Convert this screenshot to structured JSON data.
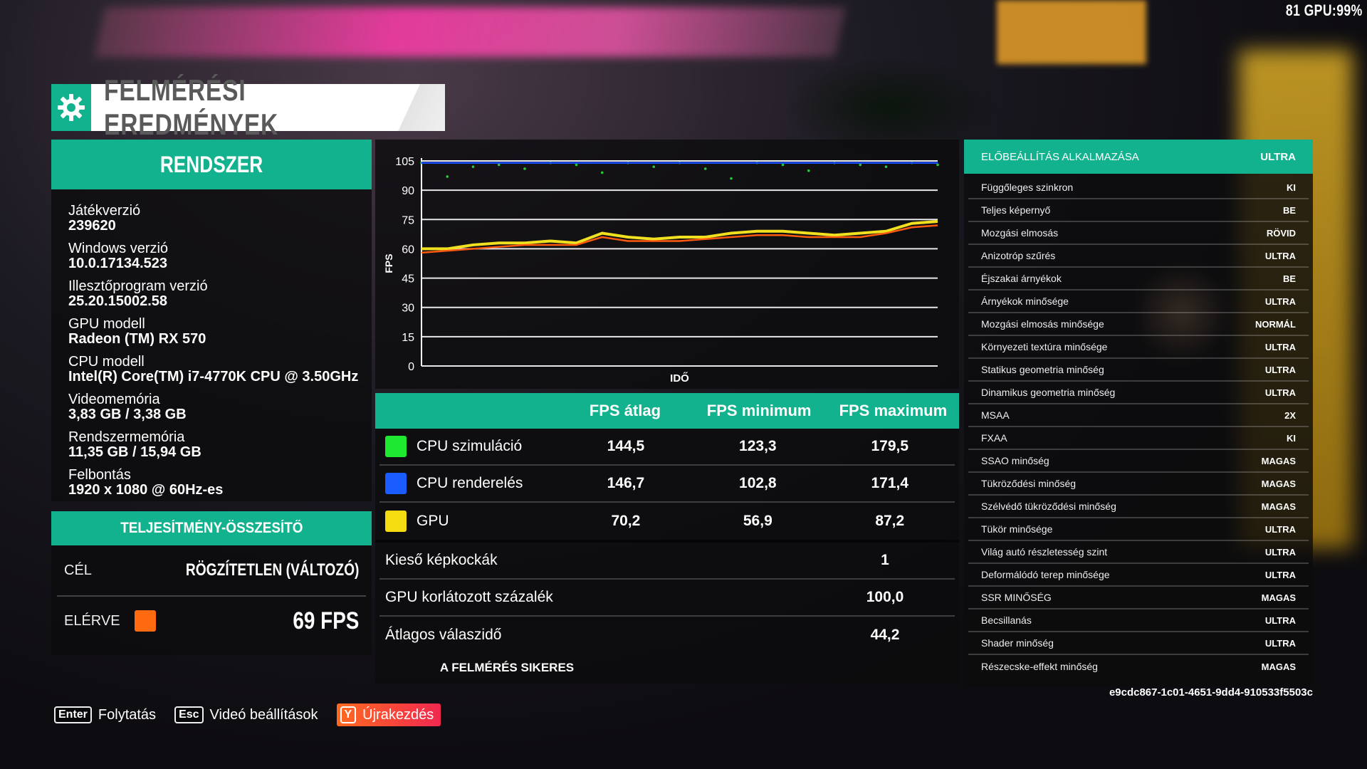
{
  "hud": {
    "top_right": "81 GPU:99%"
  },
  "header": {
    "title": "FELMÉRÉSI EREDMÉNYEK",
    "icon": "gear-icon"
  },
  "system": {
    "title": "RENDSZER",
    "items": [
      {
        "label": "Játékverzió",
        "value": "239620"
      },
      {
        "label": "Windows verzió",
        "value": "10.0.17134.523"
      },
      {
        "label": "Illesztőprogram verzió",
        "value": "25.20.15002.58"
      },
      {
        "label": "GPU modell",
        "value": "Radeon (TM) RX 570"
      },
      {
        "label": "CPU modell",
        "value": "Intel(R) Core(TM) i7-4770K CPU @ 3.50GHz"
      },
      {
        "label": "Videomemória",
        "value": "3,83 GB / 3,38 GB"
      },
      {
        "label": "Rendszermemória",
        "value": "11,35 GB / 15,94 GB"
      },
      {
        "label": "Felbontás",
        "value": "1920 x 1080 @ 60Hz-es"
      }
    ]
  },
  "performance": {
    "title": "TELJESÍTMÉNY-ÖSSZESÍTŐ",
    "target_label": "CÉL",
    "target_value": "RÖGZÍTETLEN (VÁLTOZÓ)",
    "achieved_label": "ELÉRVE",
    "achieved_value": "69 FPS",
    "achieved_color": "#ff6a10"
  },
  "chart_data": {
    "type": "line",
    "xlabel": "IDŐ",
    "ylabel": "FPS",
    "ylim": [
      0,
      105
    ],
    "yticks": [
      "0",
      "15",
      "30",
      "45",
      "60",
      "75",
      "90",
      "105"
    ],
    "x": [
      0,
      5,
      10,
      15,
      20,
      25,
      30,
      35,
      40,
      45,
      50,
      55,
      60,
      65,
      70,
      75,
      80,
      85,
      90,
      95,
      100
    ],
    "series": [
      {
        "name": "CPU szimuláció",
        "color": "#22cc33",
        "style": "scatter-high",
        "values": [
          104,
          97,
          102,
          103,
          101,
          104,
          103,
          99,
          104,
          102,
          104,
          101,
          96,
          104,
          103,
          100,
          104,
          103,
          102,
          104,
          103
        ]
      },
      {
        "name": "CPU renderelés",
        "color": "#1a4dff",
        "style": "line",
        "values": [
          104,
          104,
          104,
          104,
          104,
          104,
          104,
          104,
          104,
          104,
          104,
          104,
          104,
          104,
          104,
          104,
          104,
          104,
          104,
          104,
          104
        ]
      },
      {
        "name": "GPU",
        "color": "#f0e020",
        "style": "line",
        "values": [
          60,
          60,
          62,
          63,
          63,
          64,
          63,
          68,
          66,
          65,
          66,
          66,
          68,
          69,
          69,
          68,
          67,
          68,
          69,
          73,
          74
        ]
      },
      {
        "name": "",
        "color": "#ff5a10",
        "style": "line",
        "values": [
          58,
          59,
          60,
          61,
          62,
          62,
          62,
          66,
          64,
          64,
          64,
          65,
          66,
          67,
          67,
          66,
          66,
          66,
          68,
          71,
          72
        ]
      }
    ]
  },
  "table": {
    "headers": [
      "",
      "FPS átlag",
      "FPS minimum",
      "FPS maximum"
    ],
    "rows": [
      {
        "label": "CPU szimuláció",
        "color": "#1ee830",
        "avg": "144,5",
        "min": "123,3",
        "max": "179,5"
      },
      {
        "label": "CPU renderelés",
        "color": "#1a5cff",
        "avg": "146,7",
        "min": "102,8",
        "max": "171,4"
      },
      {
        "label": "GPU",
        "color": "#f5dc10",
        "avg": "70,2",
        "min": "56,9",
        "max": "87,2"
      }
    ],
    "stats": [
      {
        "label": "Kieső képkockák",
        "value": "1"
      },
      {
        "label": "GPU korlátozott százalék",
        "value": "100,0"
      },
      {
        "label": "Átlagos válaszidő",
        "value": "44,2"
      }
    ],
    "status": "A FELMÉRÉS SIKERES"
  },
  "settings": {
    "head_label": "ELŐBEÁLLÍTÁS ALKALMAZÁSA",
    "head_value": "ULTRA",
    "rows": [
      {
        "label": "Függőleges szinkron",
        "value": "KI"
      },
      {
        "label": "Teljes képernyő",
        "value": "BE"
      },
      {
        "label": "Mozgási elmosás",
        "value": "RÖVID"
      },
      {
        "label": "Anizotróp szűrés",
        "value": "ULTRA"
      },
      {
        "label": "Éjszakai árnyékok",
        "value": "BE"
      },
      {
        "label": "Árnyékok minősége",
        "value": "ULTRA"
      },
      {
        "label": "Mozgási elmosás minősége",
        "value": "NORMÁL"
      },
      {
        "label": "Környezeti textúra minősége",
        "value": "ULTRA"
      },
      {
        "label": "Statikus geometria minőség",
        "value": "ULTRA"
      },
      {
        "label": "Dinamikus geometria minőség",
        "value": "ULTRA"
      },
      {
        "label": "MSAA",
        "value": "2X"
      },
      {
        "label": "FXAA",
        "value": "KI"
      },
      {
        "label": "SSAO minőség",
        "value": "MAGAS"
      },
      {
        "label": "Tükröződési minőség",
        "value": "MAGAS"
      },
      {
        "label": "Szélvédő tükröződési minőség",
        "value": "MAGAS"
      },
      {
        "label": "Tükör minősége",
        "value": "ULTRA"
      },
      {
        "label": "Világ autó részletesség szint",
        "value": "ULTRA"
      },
      {
        "label": "Deformálódó terep minősége",
        "value": "ULTRA"
      },
      {
        "label": "SSR MINŐSÉG",
        "value": "MAGAS"
      },
      {
        "label": "Becsillanás",
        "value": "ULTRA"
      },
      {
        "label": "Shader minőség",
        "value": "ULTRA"
      },
      {
        "label": "Részecske-effekt minőség",
        "value": "MAGAS"
      }
    ],
    "hash": "e9cdc867-1c01-4651-9dd4-910533f5503c"
  },
  "footer": {
    "continue_key": "Enter",
    "continue_label": "Folytatás",
    "video_key": "Esc",
    "video_label": "Videó beállítások",
    "restart_key": "Y",
    "restart_label": "Újrakezdés"
  }
}
